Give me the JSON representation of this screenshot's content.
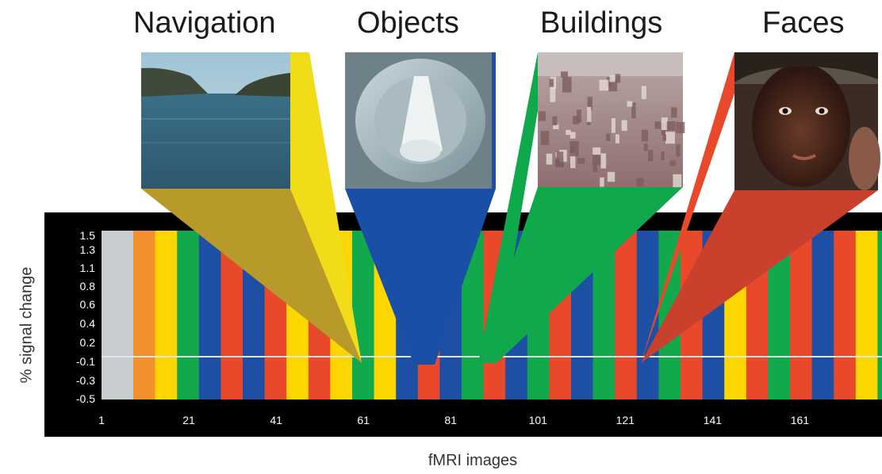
{
  "categories": [
    {
      "id": "navigation",
      "title": "Navigation",
      "color": "#f1dc1a",
      "wedge_dark": "#b89a2a"
    },
    {
      "id": "objects",
      "title": "Objects",
      "color": "#1a4fa8",
      "wedge_dark": "#1a4fa8"
    },
    {
      "id": "buildings",
      "title": "Buildings",
      "color": "#0fa84a",
      "wedge_dark": "#0fa84a"
    },
    {
      "id": "faces",
      "title": "Faces",
      "color": "#e9492b",
      "wedge_dark": "#c9402d"
    }
  ],
  "photos": [
    {
      "subject": "lake-between-hills"
    },
    {
      "subject": "plate-with-napkin"
    },
    {
      "subject": "city-skyline"
    },
    {
      "subject": "person-face"
    }
  ],
  "chart": {
    "ylabel": "% signal change",
    "xlabel": "fMRI images",
    "y_ticks": [
      "1.5",
      "1.3",
      "1.1",
      "0.8",
      "0.6",
      "0.4",
      "0.2",
      "-0.1",
      "-0.3",
      "-0.5"
    ],
    "x_ticks": [
      "1",
      "21",
      "41",
      "61",
      "81",
      "101",
      "121",
      "141",
      "161"
    ],
    "x_range": [
      1,
      178
    ],
    "baseline_y": "-0.1",
    "band_sequence": [
      "gray",
      "orange",
      "yellow",
      "green",
      "blue",
      "red",
      "blue",
      "red",
      "yellow",
      "red",
      "yellow",
      "green",
      "yellow",
      "blue",
      "red",
      "blue",
      "green",
      "red",
      "blue",
      "green",
      "red",
      "blue",
      "green",
      "red",
      "blue",
      "green",
      "red",
      "blue",
      "yellow",
      "red",
      "green",
      "red",
      "blue",
      "red",
      "yellow",
      "green",
      "gray"
    ],
    "band_colors": {
      "gray": "#c8cdd0",
      "orange": "#f3902e",
      "yellow": "#fdd600",
      "green": "#12a84c",
      "blue": "#1d4fa4",
      "red": "#e8492a"
    }
  }
}
